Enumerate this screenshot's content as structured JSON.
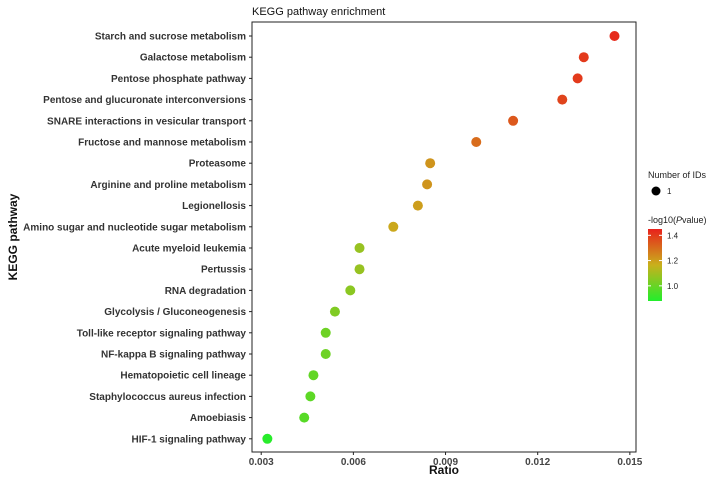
{
  "chart_data": {
    "type": "scatter",
    "title": "KEGG pathway enrichment",
    "xlabel": "Ratio",
    "ylabel": "KEGG pathway",
    "xlim": [
      0.0027,
      0.0152
    ],
    "xticks": [
      0.003,
      0.006,
      0.009,
      0.012,
      0.015
    ],
    "xtick_labels": [
      "0.003",
      "0.006",
      "0.009",
      "0.012",
      "0.015"
    ],
    "grid": false,
    "legend_position": "right",
    "size_legend": {
      "title": "Number of IDs",
      "value": "1"
    },
    "color_legend": {
      "title": "-log10(Pvalue)",
      "ticks": [
        "1.4",
        "1.2",
        "1.0"
      ],
      "tick_values": [
        1.4,
        1.2,
        1.0
      ],
      "range": [
        0.88,
        1.45
      ],
      "colors": [
        "#e8211c",
        "#c9b01c",
        "#22ee2c"
      ]
    },
    "categories": [
      "Starch and sucrose metabolism",
      "Galactose metabolism",
      "Pentose phosphate pathway",
      "Pentose and glucuronate interconversions",
      "SNARE interactions in vesicular transport",
      "Fructose and mannose metabolism",
      "Proteasome",
      "Arginine and proline metabolism",
      "Legionellosis",
      "Amino sugar and nucleotide sugar metabolism",
      "Acute myeloid leukemia",
      "Pertussis",
      "RNA degradation",
      "Glycolysis / Gluconeogenesis",
      "Toll-like receptor signaling pathway",
      "NF-kappa B signaling pathway",
      "Hematopoietic cell lineage",
      "Staphylococcus aureus infection",
      "Amoebiasis",
      "HIF-1 signaling pathway"
    ],
    "x": [
      0.0145,
      0.0135,
      0.0133,
      0.0128,
      0.0112,
      0.01,
      0.0085,
      0.0084,
      0.0081,
      0.0073,
      0.0062,
      0.0062,
      0.0059,
      0.0054,
      0.0051,
      0.0051,
      0.0047,
      0.0046,
      0.0044,
      0.0032
    ],
    "neg_log10_p": [
      1.43,
      1.4,
      1.4,
      1.38,
      1.34,
      1.3,
      1.22,
      1.22,
      1.2,
      1.18,
      1.08,
      1.08,
      1.06,
      1.04,
      1.01,
      1.01,
      0.99,
      0.98,
      0.97,
      0.89
    ],
    "size": [
      1,
      1,
      1,
      1,
      1,
      1,
      1,
      1,
      1,
      1,
      1,
      1,
      1,
      1,
      1,
      1,
      1,
      1,
      1,
      1
    ]
  }
}
